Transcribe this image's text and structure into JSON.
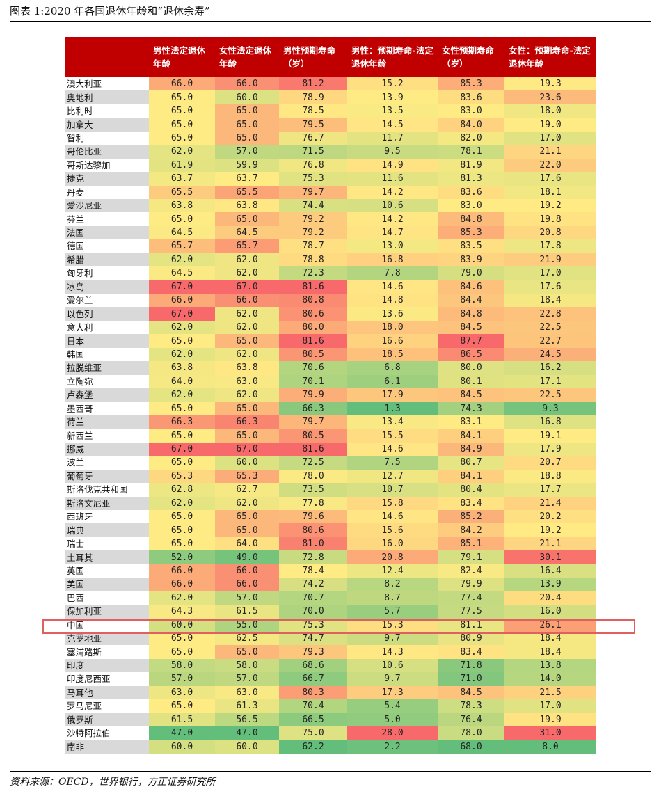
{
  "title": "图表 1:2020 年各国退休年龄和“退休余寿”",
  "columns": [
    "",
    "男性法定退休年龄",
    "女性法定退休年龄",
    "男性预期寿命（岁）",
    "男性：预期寿命-法定退休年龄",
    "女性预期寿命（岁）",
    "女性：预期寿命-法定退休年龄"
  ],
  "rows": [
    {
      "country": "澳大利亚",
      "values": [
        66.0,
        66.0,
        81.2,
        15.2,
        85.3,
        19.3
      ]
    },
    {
      "country": "奥地利",
      "values": [
        65.0,
        60.0,
        78.9,
        13.9,
        83.6,
        23.6
      ]
    },
    {
      "country": "比利时",
      "values": [
        65.0,
        65.0,
        78.5,
        13.5,
        83.0,
        18.0
      ]
    },
    {
      "country": "加拿大",
      "values": [
        65.0,
        65.0,
        79.5,
        14.5,
        84.0,
        19.0
      ]
    },
    {
      "country": "智利",
      "values": [
        65.0,
        65.0,
        76.7,
        11.7,
        82.0,
        17.0
      ]
    },
    {
      "country": "哥伦比亚",
      "values": [
        62.0,
        57.0,
        71.5,
        9.5,
        78.1,
        21.1
      ]
    },
    {
      "country": "哥斯达黎加",
      "values": [
        61.9,
        59.9,
        76.8,
        14.9,
        81.9,
        22.0
      ]
    },
    {
      "country": "捷克",
      "values": [
        63.7,
        63.7,
        75.3,
        11.6,
        81.3,
        17.6
      ]
    },
    {
      "country": "丹麦",
      "values": [
        65.5,
        65.5,
        79.7,
        14.2,
        83.6,
        18.1
      ]
    },
    {
      "country": "爱沙尼亚",
      "values": [
        63.8,
        63.8,
        74.4,
        10.6,
        83.0,
        19.2
      ]
    },
    {
      "country": "芬兰",
      "values": [
        65.0,
        65.0,
        79.2,
        14.2,
        84.8,
        19.8
      ]
    },
    {
      "country": "法国",
      "values": [
        64.5,
        64.5,
        79.2,
        14.7,
        85.3,
        20.8
      ]
    },
    {
      "country": "德国",
      "values": [
        65.7,
        65.7,
        78.7,
        13.0,
        83.5,
        17.8
      ]
    },
    {
      "country": "希腊",
      "values": [
        62.0,
        62.0,
        78.8,
        16.8,
        83.9,
        21.9
      ]
    },
    {
      "country": "匈牙利",
      "values": [
        64.5,
        62.0,
        72.3,
        7.8,
        79.0,
        17.0
      ]
    },
    {
      "country": "冰岛",
      "values": [
        67.0,
        67.0,
        81.6,
        14.6,
        84.6,
        17.6
      ]
    },
    {
      "country": "爱尔兰",
      "values": [
        66.0,
        66.0,
        80.8,
        14.8,
        84.4,
        18.4
      ]
    },
    {
      "country": "以色列",
      "values": [
        67.0,
        62.0,
        80.6,
        13.6,
        84.8,
        22.8
      ]
    },
    {
      "country": "意大利",
      "values": [
        62.0,
        62.0,
        80.0,
        18.0,
        84.5,
        22.5
      ]
    },
    {
      "country": "日本",
      "values": [
        65.0,
        65.0,
        81.6,
        16.6,
        87.7,
        22.7
      ]
    },
    {
      "country": "韩国",
      "values": [
        62.0,
        62.0,
        80.5,
        18.5,
        86.5,
        24.5
      ]
    },
    {
      "country": "拉脱维亚",
      "values": [
        63.8,
        63.8,
        70.6,
        6.8,
        80.0,
        16.2
      ]
    },
    {
      "country": "立陶宛",
      "values": [
        64.0,
        63.0,
        70.1,
        6.1,
        80.1,
        17.1
      ]
    },
    {
      "country": "卢森堡",
      "values": [
        62.0,
        62.0,
        79.9,
        17.9,
        84.5,
        22.5
      ]
    },
    {
      "country": "墨西哥",
      "values": [
        65.0,
        65.0,
        66.3,
        1.3,
        74.3,
        9.3
      ]
    },
    {
      "country": "荷兰",
      "values": [
        66.3,
        66.3,
        79.7,
        13.4,
        83.1,
        16.8
      ]
    },
    {
      "country": "新西兰",
      "values": [
        65.0,
        65.0,
        80.5,
        15.5,
        84.1,
        19.1
      ]
    },
    {
      "country": "挪威",
      "values": [
        67.0,
        67.0,
        81.6,
        14.6,
        84.9,
        17.9
      ]
    },
    {
      "country": "波兰",
      "values": [
        65.0,
        60.0,
        72.5,
        7.5,
        80.7,
        20.7
      ]
    },
    {
      "country": "葡萄牙",
      "values": [
        65.3,
        65.3,
        78.0,
        12.7,
        84.1,
        18.8
      ]
    },
    {
      "country": "斯洛伐克共和国",
      "values": [
        62.8,
        62.7,
        73.5,
        10.7,
        80.4,
        17.7
      ]
    },
    {
      "country": "斯洛文尼亚",
      "values": [
        62.0,
        62.0,
        77.8,
        15.8,
        83.4,
        21.4
      ]
    },
    {
      "country": "西班牙",
      "values": [
        65.0,
        65.0,
        79.6,
        14.6,
        85.2,
        20.2
      ]
    },
    {
      "country": "瑞典",
      "values": [
        65.0,
        65.0,
        80.6,
        15.6,
        84.2,
        19.2
      ]
    },
    {
      "country": "瑞士",
      "values": [
        65.0,
        64.0,
        81.0,
        16.0,
        85.1,
        21.1
      ]
    },
    {
      "country": "土耳其",
      "values": [
        52.0,
        49.0,
        72.8,
        20.8,
        79.1,
        30.1
      ]
    },
    {
      "country": "英国",
      "values": [
        66.0,
        66.0,
        78.4,
        12.4,
        82.4,
        16.4
      ]
    },
    {
      "country": "美国",
      "values": [
        66.0,
        66.0,
        74.2,
        8.2,
        79.9,
        13.9
      ]
    },
    {
      "country": "巴西",
      "values": [
        62.0,
        57.0,
        70.7,
        8.7,
        77.4,
        20.4
      ]
    },
    {
      "country": "保加利亚",
      "values": [
        64.3,
        61.5,
        70.0,
        5.7,
        77.5,
        16.0
      ]
    },
    {
      "country": "中国",
      "values": [
        60.0,
        55.0,
        75.3,
        15.3,
        81.1,
        26.1
      ]
    },
    {
      "country": "克罗地亚",
      "values": [
        65.0,
        62.5,
        74.7,
        9.7,
        80.9,
        18.4
      ]
    },
    {
      "country": "塞浦路斯",
      "values": [
        65.0,
        65.0,
        79.3,
        14.3,
        83.4,
        18.4
      ]
    },
    {
      "country": "印度",
      "values": [
        58.0,
        58.0,
        68.6,
        10.6,
        71.8,
        13.8
      ]
    },
    {
      "country": "印度尼西亚",
      "values": [
        57.0,
        57.0,
        66.7,
        9.7,
        71.0,
        14.0
      ]
    },
    {
      "country": "马耳他",
      "values": [
        63.0,
        63.0,
        80.3,
        17.3,
        84.5,
        21.5
      ]
    },
    {
      "country": "罗马尼亚",
      "values": [
        65.0,
        61.3,
        70.4,
        5.4,
        78.3,
        17.0
      ]
    },
    {
      "country": "俄罗斯",
      "values": [
        61.5,
        56.5,
        66.5,
        5.0,
        76.4,
        19.9
      ]
    },
    {
      "country": "沙特阿拉伯",
      "values": [
        47.0,
        47.0,
        75.0,
        28.0,
        78.0,
        31.0
      ]
    },
    {
      "country": "南非",
      "values": [
        60.0,
        60.0,
        62.2,
        2.2,
        68.0,
        8.0
      ]
    }
  ],
  "highlighted_country": "中国",
  "heat_colors": {
    "low": "#63be7b",
    "mid": "#ffeb84",
    "high": "#f8696b"
  },
  "source": "资料来源：OECD，世界银行，方正证券研究所"
}
